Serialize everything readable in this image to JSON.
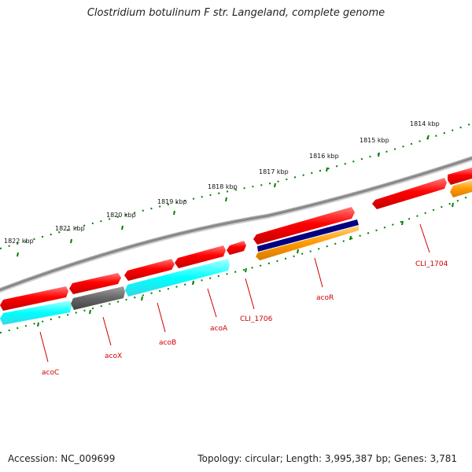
{
  "title": "Clostridium botulinum F str. Langeland, complete genome",
  "footer": {
    "accession": "Accession: NC_009699",
    "topology": "Topology: circular; Length: 3,995,387 bp; Genes: 3,781"
  },
  "scale_ticks": [
    "1814 kbp",
    "1815 kbp",
    "1816 kbp",
    "1817 kbp",
    "1818 kbp",
    "1819 kbp",
    "1820 kbp",
    "1821 kbp",
    "1822 kbp"
  ],
  "gene_labels": [
    "CLI_1704",
    "acoR",
    "CLI_1706",
    "acoA",
    "acoB",
    "acoX",
    "acoC"
  ],
  "colors": {
    "backbone": "#888888",
    "gene_red": "#ff0000",
    "gene_cyan": "#00ffff",
    "gene_gray": "#666666",
    "gene_navy": "#000080",
    "gene_orange": "#ff9900",
    "tick_green": "#008000",
    "label_red": "#cc0000"
  }
}
